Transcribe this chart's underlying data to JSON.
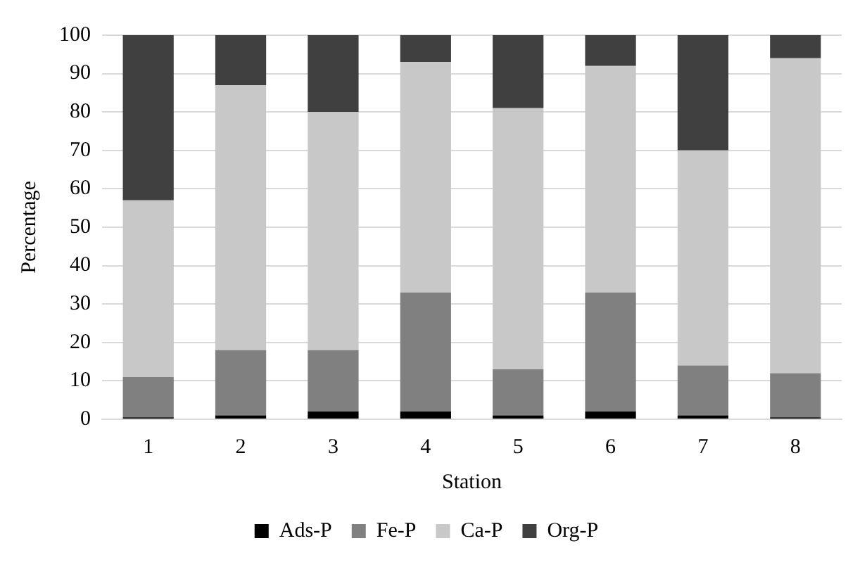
{
  "chart_data": {
    "type": "bar",
    "stacked": true,
    "xlabel": "Station",
    "ylabel": "Percentage",
    "categories": [
      "1",
      "2",
      "3",
      "4",
      "5",
      "6",
      "7",
      "8"
    ],
    "series": [
      {
        "name": "Ads-P",
        "color": "#000000",
        "values": [
          0.5,
          1,
          2,
          2,
          1,
          2,
          1,
          0.5
        ]
      },
      {
        "name": "Fe-P",
        "color": "#808080",
        "values": [
          10.5,
          17,
          16,
          31,
          12,
          31,
          13,
          11.5
        ]
      },
      {
        "name": "Ca-P",
        "color": "#c8c8c8",
        "values": [
          46,
          69,
          62,
          60,
          68,
          59,
          56,
          82
        ]
      },
      {
        "name": "Org-P",
        "color": "#404040",
        "values": [
          43,
          13,
          20,
          7,
          19,
          8,
          30,
          6
        ]
      }
    ],
    "ylim": [
      0,
      100
    ],
    "yticks": [
      0,
      10,
      20,
      30,
      40,
      50,
      60,
      70,
      80,
      90,
      100
    ],
    "grid": "y",
    "legend": "bottom"
  }
}
